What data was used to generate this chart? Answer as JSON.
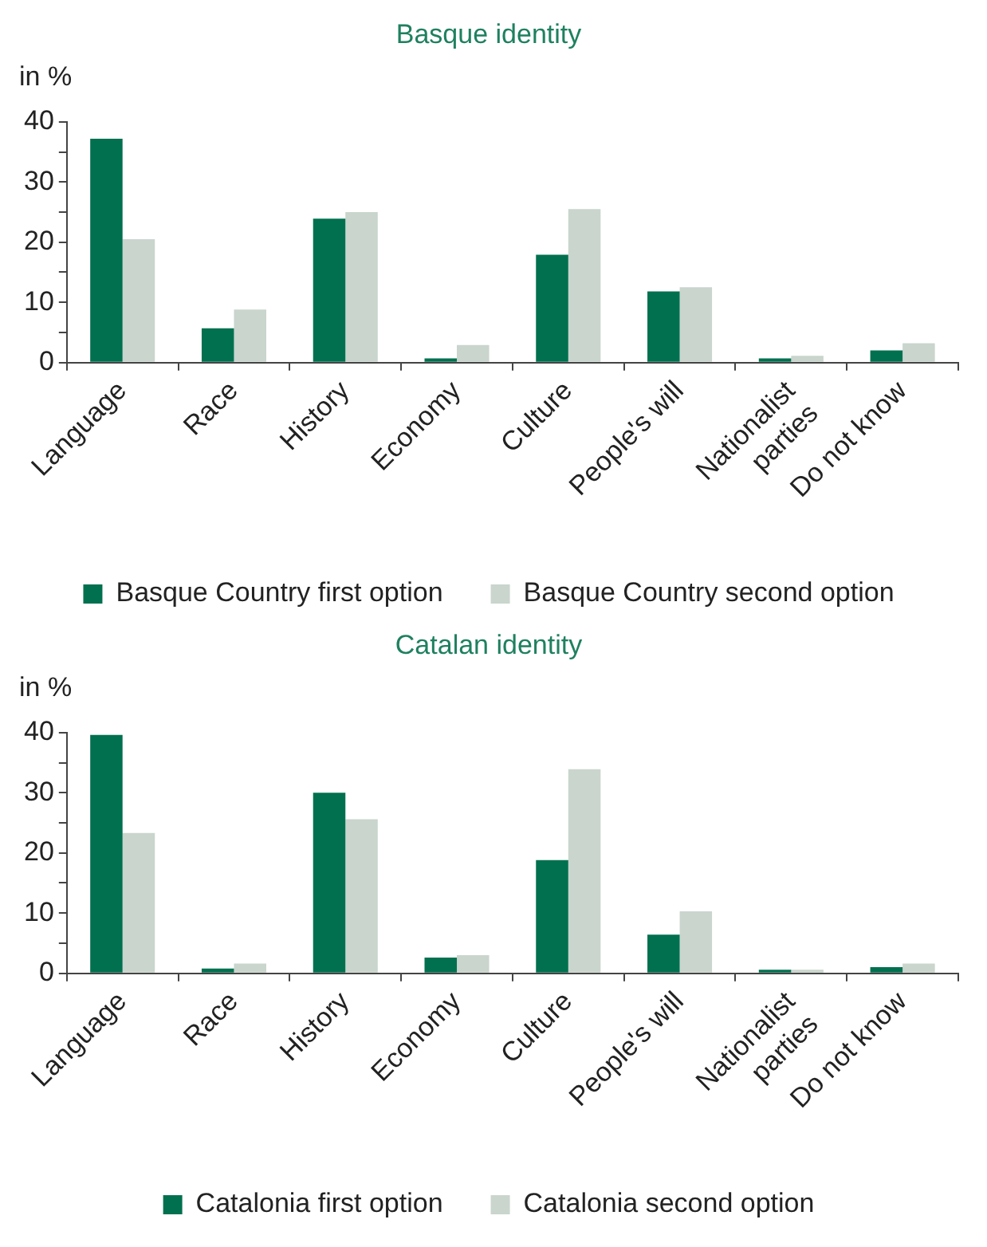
{
  "chart_data": [
    {
      "type": "bar",
      "title": "Basque identity",
      "ylabel": "in %",
      "categories": [
        "Language",
        "Race",
        "History",
        "Economy",
        "Culture",
        "People's will",
        "Nationalist parties",
        "Do not know"
      ],
      "series": [
        {
          "name": "Basque Country first option",
          "color": "#00704f",
          "values": [
            37.2,
            5.7,
            23.9,
            0.7,
            17.9,
            11.8,
            0.7,
            2.0
          ]
        },
        {
          "name": "Basque Country second option",
          "color": "#c9d5cd",
          "values": [
            20.5,
            8.8,
            25.0,
            2.9,
            25.5,
            12.5,
            1.1,
            3.2
          ]
        }
      ],
      "ylim": [
        0,
        40
      ],
      "yticks": [
        0,
        {
          "value": 5,
          "label": null
        },
        10,
        {
          "value": 15,
          "label": null
        },
        20,
        {
          "value": 25,
          "label": null
        },
        30,
        {
          "value": 35,
          "label": null
        },
        40
      ],
      "grid": false,
      "legend": "bottom"
    },
    {
      "type": "bar",
      "title": "Catalan identity",
      "ylabel": "in %",
      "categories": [
        "Language",
        "Race",
        "History",
        "Economy",
        "Culture",
        "People's will",
        "Nationalist parties",
        "Do not know"
      ],
      "series": [
        {
          "name": "Catalonia first option",
          "color": "#00704f",
          "values": [
            39.6,
            0.8,
            30.0,
            2.6,
            18.8,
            6.4,
            0.6,
            1.0
          ]
        },
        {
          "name": "Catalonia second option",
          "color": "#c9d5cd",
          "values": [
            23.3,
            1.6,
            25.6,
            3.0,
            33.9,
            10.3,
            0.6,
            1.6
          ]
        }
      ],
      "ylim": [
        0,
        40
      ],
      "yticks": [
        0,
        {
          "value": 5,
          "label": null
        },
        10,
        {
          "value": 15,
          "label": null
        },
        20,
        {
          "value": 25,
          "label": null
        },
        30,
        {
          "value": 35,
          "label": null
        },
        40
      ],
      "grid": false,
      "legend": "bottom"
    }
  ]
}
